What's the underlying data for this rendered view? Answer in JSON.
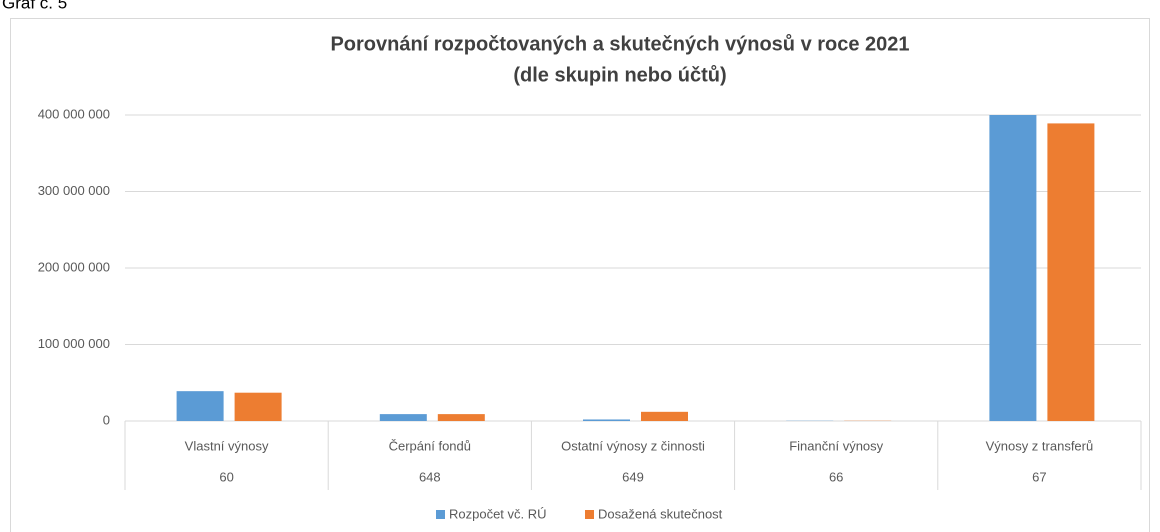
{
  "caption": "Graf č. 5",
  "chart_data": {
    "type": "bar",
    "title": "Porovnání  rozpočtovaných a skutečných výnosů v roce 2021",
    "subtitle": "(dle skupin nebo účtů)",
    "categories": [
      "Vlastní výnosy",
      "Čerpání fondů",
      "Ostatní výnosy z činnosti",
      "Finanční výnosy",
      "Výnosy  z transferů"
    ],
    "category_codes": [
      "60",
      "648",
      "649",
      "66",
      "67"
    ],
    "series": [
      {
        "name": "Rozpočet  vč. RÚ",
        "color": "#5b9bd5",
        "values": [
          39000000,
          9000000,
          2000000,
          300000,
          400000000
        ]
      },
      {
        "name": "Dosažená skutečnost",
        "color": "#ed7d31",
        "values": [
          37000000,
          9000000,
          12000000,
          300000,
          389000000
        ]
      }
    ],
    "ylim": [
      0,
      400000000
    ],
    "yticks": [
      0,
      {
        "value": 100000000,
        "label": "100 000 000"
      },
      {
        "value": 200000000,
        "label": "200 000 000"
      },
      {
        "value": 300000000,
        "label": "300 000 000"
      },
      {
        "value": 400000000,
        "label": "400 000 000"
      }
    ],
    "grid": true,
    "legend": "bottom"
  }
}
